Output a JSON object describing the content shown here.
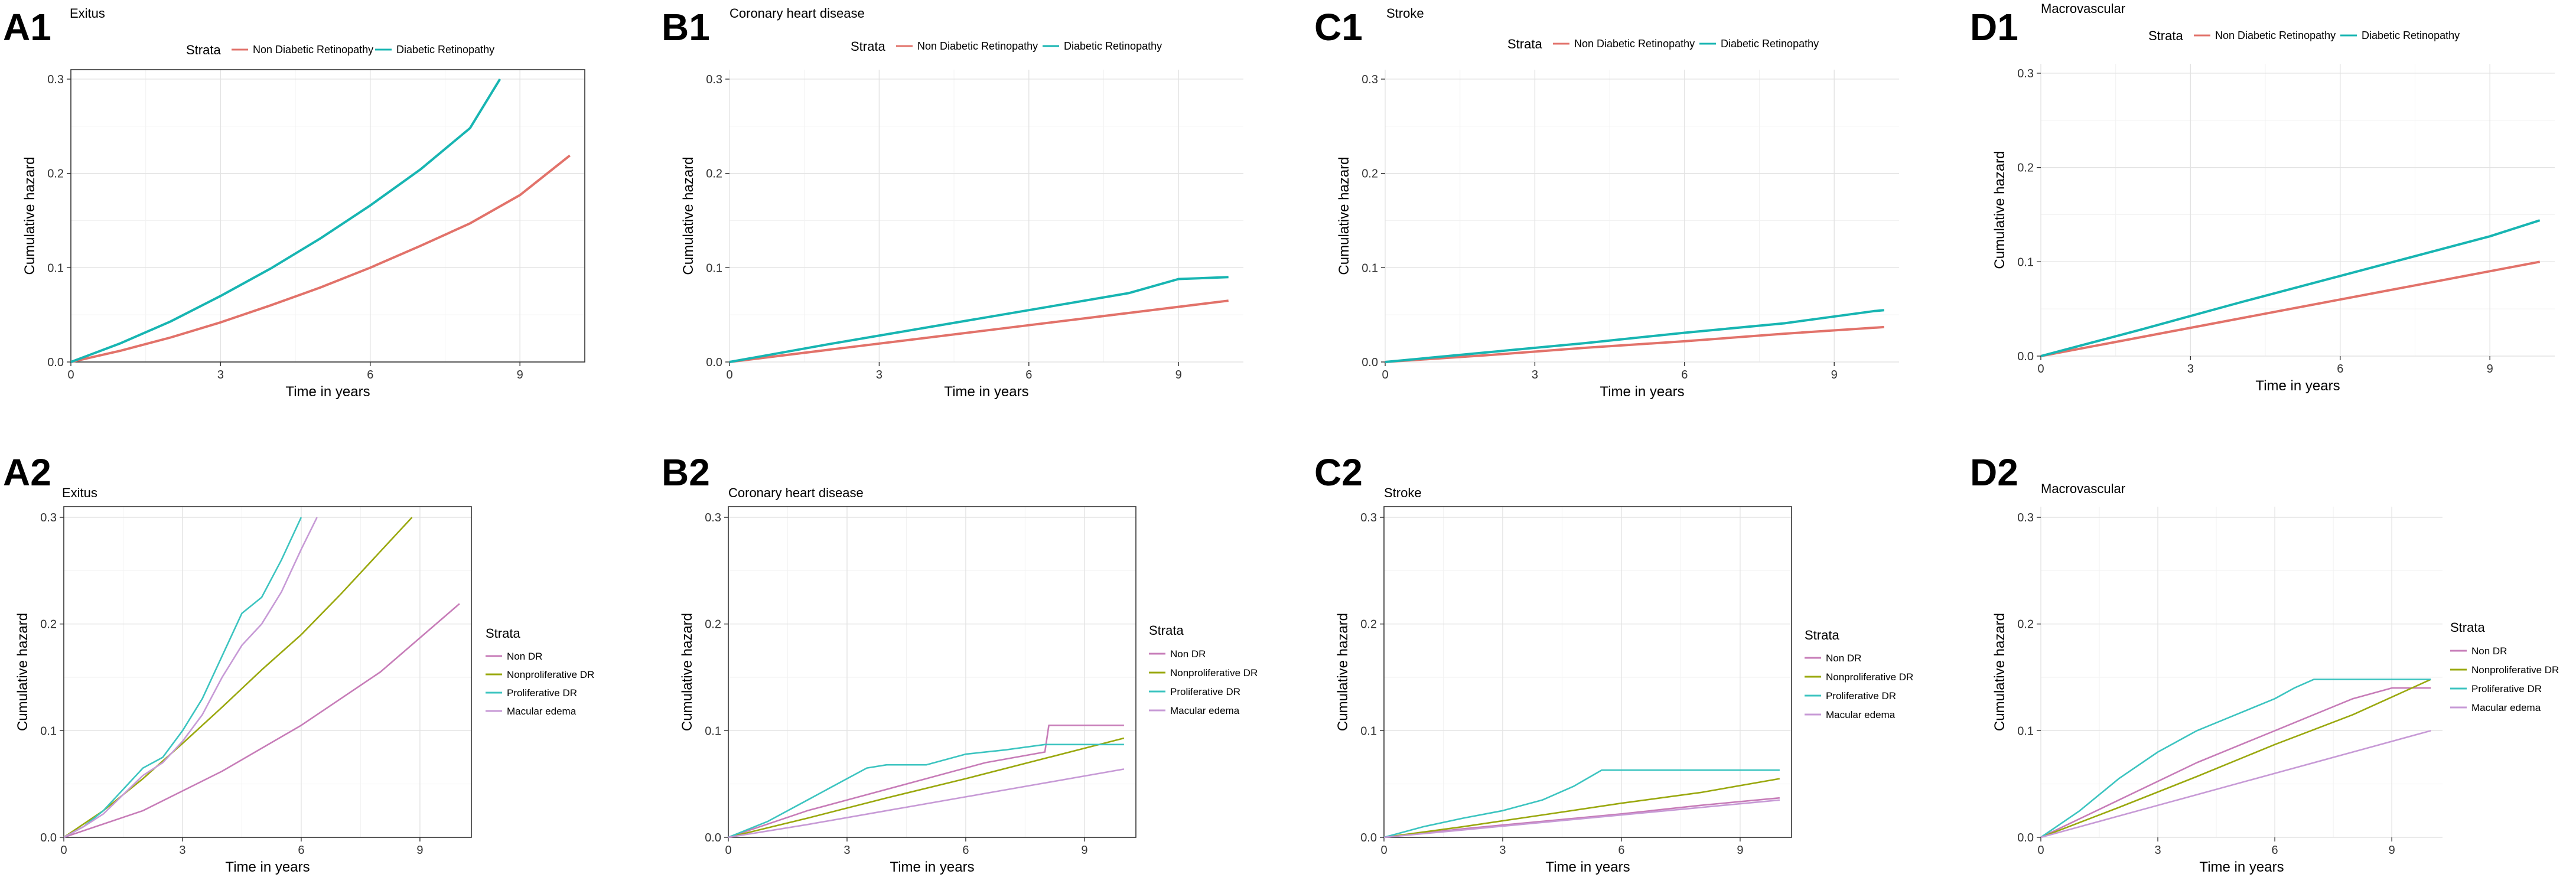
{
  "figure_labels": {
    "A1": "A1",
    "B1": "B1",
    "C1": "C1",
    "D1": "D1",
    "A2": "A2",
    "B2": "B2",
    "C2": "C2",
    "D2": "D2"
  },
  "colors": {
    "non_diabetic": "#E2726A",
    "diabetic": "#17B5B2",
    "non_dr": "#C77CB8",
    "nonproliferative": "#9AA80E",
    "proliferative": "#3CC4C0",
    "macular": "#C79AD6"
  },
  "legend_top": {
    "title": "Strata",
    "items": [
      "Non Diabetic Retinopathy",
      "Diabetic Retinopathy"
    ]
  },
  "legend_side": {
    "title": "Strata",
    "items": [
      "Non DR",
      "Nonproliferative DR",
      "Proliferative DR",
      "Macular edema"
    ]
  },
  "chart_data": [
    {
      "panel": "A1",
      "type": "line",
      "title": "Exitus",
      "xlabel": "Time in years",
      "ylabel": "Cumulative hazard",
      "xlim": [
        0,
        10.3
      ],
      "ylim": [
        0,
        0.31
      ],
      "xticks": [
        0,
        3,
        6,
        9
      ],
      "yticks": [
        0.0,
        0.1,
        0.2,
        0.3
      ],
      "xtick_labels": [
        "0",
        "3",
        "6",
        "9"
      ],
      "ytick_labels": [
        "0.0",
        "0.1",
        "0.2",
        "0.3"
      ],
      "series": [
        {
          "name": "Non Diabetic Retinopathy",
          "x": [
            0,
            1,
            2,
            3,
            4,
            5,
            6,
            7,
            8,
            9,
            10
          ],
          "y": [
            0,
            0.012,
            0.026,
            0.042,
            0.06,
            0.079,
            0.1,
            0.123,
            0.147,
            0.177,
            0.219
          ]
        },
        {
          "name": "Diabetic Retinopathy",
          "x": [
            0,
            1,
            2,
            3,
            4,
            5,
            6,
            7,
            8,
            8.6
          ],
          "y": [
            0,
            0.02,
            0.043,
            0.07,
            0.099,
            0.131,
            0.166,
            0.204,
            0.248,
            0.3
          ]
        }
      ]
    },
    {
      "panel": "B1",
      "type": "line",
      "title": "Coronary heart disease",
      "xlabel": "Time in years",
      "ylabel": "Cumulative hazard",
      "xlim": [
        0,
        10.3
      ],
      "ylim": [
        0,
        0.31
      ],
      "xticks": [
        0,
        3,
        6,
        9
      ],
      "yticks": [
        0.0,
        0.1,
        0.2,
        0.3
      ],
      "xtick_labels": [
        "0",
        "3",
        "6",
        "9"
      ],
      "ytick_labels": [
        "0.0",
        "0.1",
        "0.2",
        "0.3"
      ],
      "series": [
        {
          "name": "Non Diabetic Retinopathy",
          "x": [
            0,
            2,
            4,
            6,
            8,
            10
          ],
          "y": [
            0,
            0.013,
            0.026,
            0.039,
            0.052,
            0.065
          ]
        },
        {
          "name": "Diabetic Retinopathy",
          "x": [
            0,
            2,
            4,
            6,
            8,
            9,
            10
          ],
          "y": [
            0,
            0.019,
            0.037,
            0.055,
            0.073,
            0.088,
            0.09
          ]
        }
      ]
    },
    {
      "panel": "C1",
      "type": "line",
      "title": "Stroke",
      "xlabel": "Time in years",
      "ylabel": "Cumulative hazard",
      "xlim": [
        0,
        10.3
      ],
      "ylim": [
        0,
        0.31
      ],
      "xticks": [
        0,
        3,
        6,
        9
      ],
      "yticks": [
        0.0,
        0.1,
        0.2,
        0.3
      ],
      "xtick_labels": [
        "0",
        "3",
        "6",
        "9"
      ],
      "ytick_labels": [
        "0.0",
        "0.1",
        "0.2",
        "0.3"
      ],
      "series": [
        {
          "name": "Non Diabetic Retinopathy",
          "x": [
            0,
            2,
            4,
            6,
            8,
            10
          ],
          "y": [
            0,
            0.007,
            0.015,
            0.022,
            0.03,
            0.037
          ]
        },
        {
          "name": "Diabetic Retinopathy",
          "x": [
            0,
            2,
            4,
            6,
            8,
            9.8,
            10
          ],
          "y": [
            0,
            0.01,
            0.02,
            0.031,
            0.041,
            0.054,
            0.055
          ]
        }
      ]
    },
    {
      "panel": "D1",
      "type": "line",
      "title": "Macrovascular",
      "xlabel": "Time in years",
      "ylabel": "Cumulative hazard",
      "xlim": [
        0,
        10.3
      ],
      "ylim": [
        0,
        0.31
      ],
      "xticks": [
        0,
        3,
        6,
        9
      ],
      "yticks": [
        0.0,
        0.1,
        0.2,
        0.3
      ],
      "xtick_labels": [
        "0",
        "3",
        "6",
        "9"
      ],
      "ytick_labels": [
        "0.0",
        "0.1",
        "0.2",
        "0.3"
      ],
      "series": [
        {
          "name": "Non Diabetic Retinopathy",
          "x": [
            0,
            2,
            4,
            6,
            8,
            10
          ],
          "y": [
            0,
            0.02,
            0.04,
            0.06,
            0.08,
            0.1
          ]
        },
        {
          "name": "Diabetic Retinopathy",
          "x": [
            0,
            2,
            4,
            6,
            8,
            9,
            10
          ],
          "y": [
            0,
            0.028,
            0.057,
            0.085,
            0.113,
            0.127,
            0.144
          ]
        }
      ]
    },
    {
      "panel": "A2",
      "type": "line",
      "title": "Exitus",
      "xlabel": "Time in years",
      "ylabel": "Cumulative hazard",
      "xlim": [
        0,
        10.3
      ],
      "ylim": [
        0,
        0.31
      ],
      "xticks": [
        0,
        3,
        6,
        9
      ],
      "yticks": [
        0.0,
        0.1,
        0.2,
        0.3
      ],
      "xtick_labels": [
        "0",
        "3",
        "6",
        "9"
      ],
      "ytick_labels": [
        "0.0",
        "0.1",
        "0.2",
        "0.3"
      ],
      "series": [
        {
          "name": "Non DR",
          "x": [
            0,
            2,
            4,
            6,
            8,
            10
          ],
          "y": [
            0,
            0.025,
            0.062,
            0.105,
            0.155,
            0.219
          ]
        },
        {
          "name": "Nonproliferative DR",
          "x": [
            0,
            1,
            2,
            3,
            4,
            5,
            6,
            7,
            8,
            8.8
          ],
          "y": [
            0,
            0.025,
            0.055,
            0.088,
            0.122,
            0.157,
            0.19,
            0.228,
            0.268,
            0.3
          ]
        },
        {
          "name": "Proliferative DR",
          "x": [
            0,
            0.5,
            1,
            1.5,
            2,
            2.5,
            3,
            3.5,
            4,
            4.5,
            5,
            5.5,
            6
          ],
          "y": [
            0,
            0.01,
            0.025,
            0.045,
            0.065,
            0.075,
            0.1,
            0.13,
            0.17,
            0.21,
            0.225,
            0.26,
            0.3
          ]
        },
        {
          "name": "Macular edema",
          "x": [
            0,
            0.5,
            1,
            1.5,
            2,
            2.5,
            3,
            3.5,
            4,
            4.5,
            5,
            5.5,
            6,
            6.4
          ],
          "y": [
            0,
            0.01,
            0.022,
            0.04,
            0.058,
            0.07,
            0.09,
            0.115,
            0.15,
            0.18,
            0.2,
            0.23,
            0.27,
            0.3
          ]
        }
      ]
    },
    {
      "panel": "B2",
      "type": "line",
      "title": "Coronary heart disease",
      "xlabel": "Time in years",
      "ylabel": "Cumulative hazard",
      "xlim": [
        0,
        10.3
      ],
      "ylim": [
        0,
        0.31
      ],
      "xticks": [
        0,
        3,
        6,
        9
      ],
      "yticks": [
        0.0,
        0.1,
        0.2,
        0.3
      ],
      "xtick_labels": [
        "0",
        "3",
        "6",
        "9"
      ],
      "ytick_labels": [
        "0.0",
        "0.1",
        "0.2",
        "0.3"
      ],
      "series": [
        {
          "name": "Non DR",
          "x": [
            0,
            2,
            3,
            5,
            6.5,
            8,
            8.1,
            10
          ],
          "y": [
            0,
            0.025,
            0.035,
            0.055,
            0.07,
            0.08,
            0.105,
            0.105
          ]
        },
        {
          "name": "Nonproliferative DR",
          "x": [
            0,
            2,
            4,
            6,
            8,
            10
          ],
          "y": [
            0,
            0.018,
            0.037,
            0.055,
            0.074,
            0.093
          ]
        },
        {
          "name": "Proliferative DR",
          "x": [
            0,
            1,
            2,
            2.5,
            3,
            3.5,
            4,
            5,
            6,
            7,
            8,
            10
          ],
          "y": [
            0,
            0.015,
            0.035,
            0.045,
            0.055,
            0.065,
            0.068,
            0.068,
            0.078,
            0.082,
            0.087,
            0.087
          ]
        },
        {
          "name": "Macular edema",
          "x": [
            0,
            2,
            4,
            6,
            8,
            10
          ],
          "y": [
            0,
            0.012,
            0.025,
            0.038,
            0.051,
            0.064
          ]
        }
      ]
    },
    {
      "panel": "C2",
      "type": "line",
      "title": "Stroke",
      "xlabel": "Time in years",
      "ylabel": "Cumulative hazard",
      "xlim": [
        0,
        10.3
      ],
      "ylim": [
        0,
        0.31
      ],
      "xticks": [
        0,
        3,
        6,
        9
      ],
      "yticks": [
        0.0,
        0.1,
        0.2,
        0.3
      ],
      "xtick_labels": [
        "0",
        "3",
        "6",
        "9"
      ],
      "ytick_labels": [
        "0.0",
        "0.1",
        "0.2",
        "0.3"
      ],
      "series": [
        {
          "name": "Non DR",
          "x": [
            0,
            2,
            4,
            6,
            8,
            10
          ],
          "y": [
            0,
            0.008,
            0.015,
            0.022,
            0.03,
            0.037
          ]
        },
        {
          "name": "Nonproliferative DR",
          "x": [
            0,
            2,
            4,
            6,
            8,
            10
          ],
          "y": [
            0,
            0.01,
            0.021,
            0.032,
            0.042,
            0.055
          ]
        },
        {
          "name": "Proliferative DR",
          "x": [
            0,
            1,
            2,
            3,
            4,
            4.8,
            5.5,
            6,
            10
          ],
          "y": [
            0,
            0.01,
            0.018,
            0.025,
            0.035,
            0.048,
            0.063,
            0.063,
            0.063
          ]
        },
        {
          "name": "Macular edema",
          "x": [
            0,
            2,
            4,
            6,
            8,
            10
          ],
          "y": [
            0,
            0.007,
            0.014,
            0.021,
            0.028,
            0.035
          ]
        }
      ]
    },
    {
      "panel": "D2",
      "type": "line",
      "title": "Macrovascular",
      "xlabel": "Time in years",
      "ylabel": "Cumulative hazard",
      "xlim": [
        0,
        10.3
      ],
      "ylim": [
        0,
        0.31
      ],
      "xticks": [
        0,
        3,
        6,
        9
      ],
      "yticks": [
        0.0,
        0.1,
        0.2,
        0.3
      ],
      "xtick_labels": [
        "0",
        "3",
        "6",
        "9"
      ],
      "ytick_labels": [
        "0.0",
        "0.1",
        "0.2",
        "0.3"
      ],
      "series": [
        {
          "name": "Non DR",
          "x": [
            0,
            2,
            4,
            6,
            7,
            8,
            9,
            10
          ],
          "y": [
            0,
            0.035,
            0.07,
            0.1,
            0.115,
            0.13,
            0.14,
            0.14
          ]
        },
        {
          "name": "Nonproliferative DR",
          "x": [
            0,
            2,
            4,
            6,
            8,
            10
          ],
          "y": [
            0,
            0.028,
            0.057,
            0.087,
            0.115,
            0.148
          ]
        },
        {
          "name": "Proliferative DR",
          "x": [
            0,
            1,
            2,
            3,
            4,
            5,
            6,
            6.5,
            7,
            8,
            10
          ],
          "y": [
            0,
            0.025,
            0.055,
            0.08,
            0.1,
            0.115,
            0.13,
            0.14,
            0.148,
            0.148,
            0.148
          ]
        },
        {
          "name": "Macular edema",
          "x": [
            0,
            2,
            4,
            6,
            8,
            10
          ],
          "y": [
            0,
            0.02,
            0.04,
            0.06,
            0.08,
            0.1
          ]
        }
      ]
    }
  ]
}
